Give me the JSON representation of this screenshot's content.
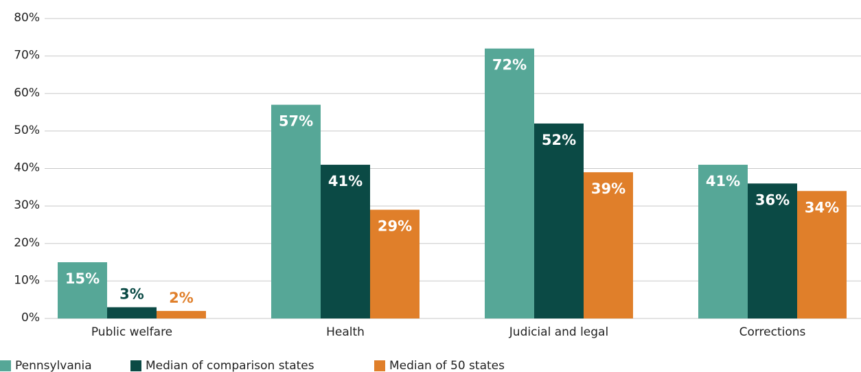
{
  "chart_data": {
    "type": "bar",
    "categories": [
      "Public welfare",
      "Health",
      "Judicial and legal",
      "Corrections"
    ],
    "series": [
      {
        "name": "Pennsylvania",
        "color": "#56a797",
        "values": [
          15,
          57,
          72,
          41
        ],
        "value_labels": [
          "15%",
          "57%",
          "72%",
          "41%"
        ]
      },
      {
        "name": "Median of comparison states",
        "color": "#0b4a45",
        "values": [
          3,
          41,
          52,
          36
        ],
        "value_labels": [
          "3%",
          "41%",
          "52%",
          "36%"
        ]
      },
      {
        "name": "Median of 50 states",
        "color": "#e07f2a",
        "values": [
          2,
          29,
          39,
          34
        ],
        "value_labels": [
          "2%",
          "29%",
          "39%",
          "34%"
        ]
      }
    ],
    "ylim": [
      0,
      80
    ],
    "yticks": [
      {
        "value": 0,
        "label": "0%"
      },
      {
        "value": 10,
        "label": "10%"
      },
      {
        "value": 20,
        "label": "20%"
      },
      {
        "value": 30,
        "label": "30%"
      },
      {
        "value": 40,
        "label": "40%"
      },
      {
        "value": 50,
        "label": "50%"
      },
      {
        "value": 60,
        "label": "60%"
      },
      {
        "value": 70,
        "label": "70%"
      },
      {
        "value": 80,
        "label": "80%"
      }
    ],
    "grid": true,
    "legend": "bottom-left"
  }
}
